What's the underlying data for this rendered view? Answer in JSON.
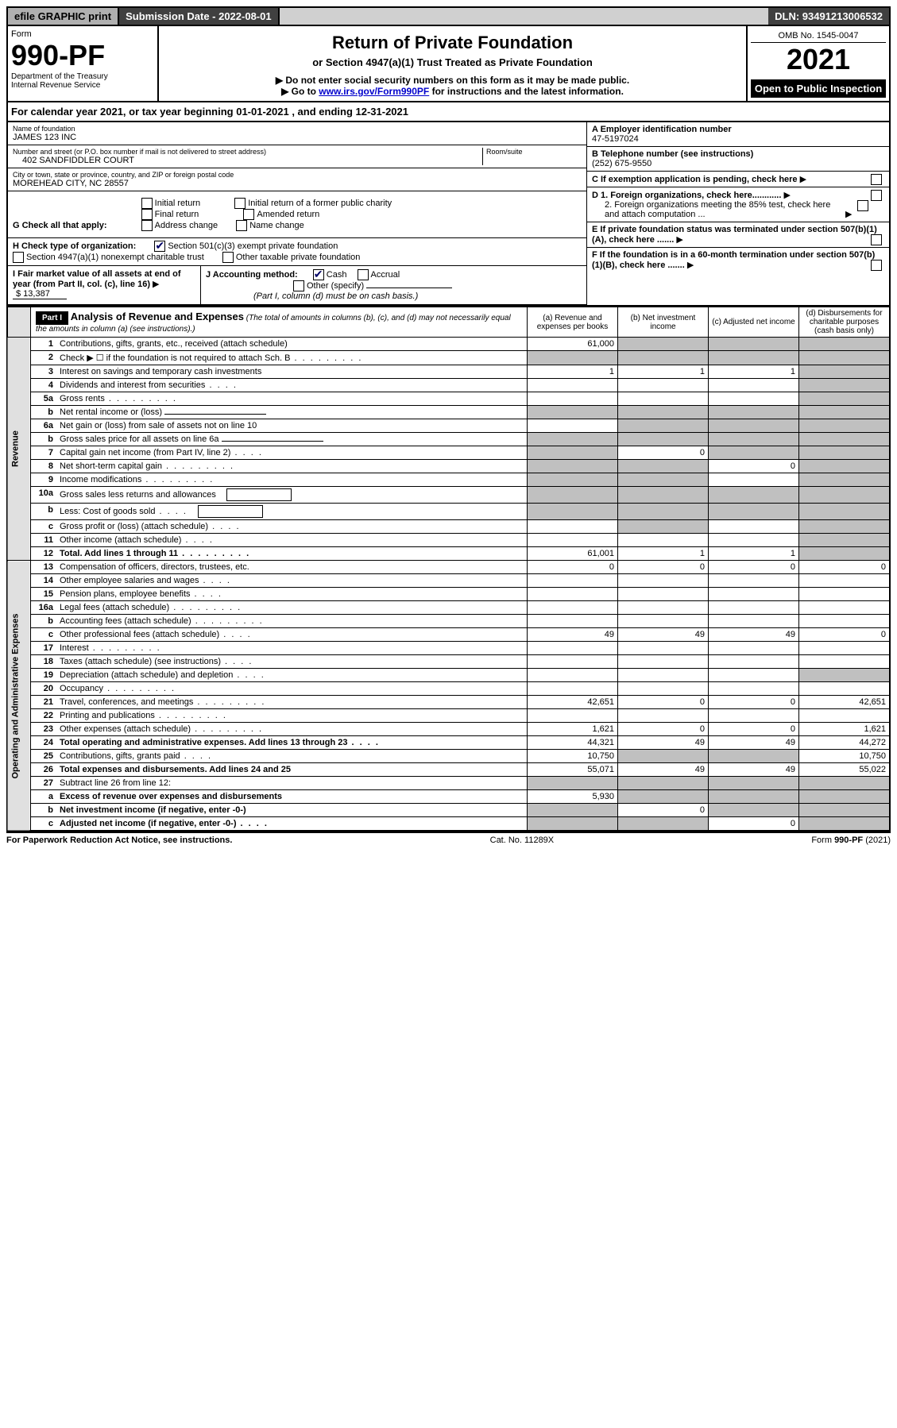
{
  "topbar": {
    "efile": "efile GRAPHIC print",
    "sub_date": "Submission Date - 2022-08-01",
    "dln": "DLN: 93491213006532"
  },
  "header": {
    "form_label": "Form",
    "form_number": "990-PF",
    "dept": "Department of the Treasury",
    "irs": "Internal Revenue Service",
    "title": "Return of Private Foundation",
    "subtitle": "or Section 4947(a)(1) Trust Treated as Private Foundation",
    "note1": "▶ Do not enter social security numbers on this form as it may be made public.",
    "note2_pre": "▶ Go to ",
    "note2_link": "www.irs.gov/Form990PF",
    "note2_post": " for instructions and the latest information.",
    "omb": "OMB No. 1545-0047",
    "year": "2021",
    "open": "Open to Public Inspection"
  },
  "calyear": "For calendar year 2021, or tax year beginning 01-01-2021         , and ending 12-31-2021",
  "name_label": "Name of foundation",
  "name": "JAMES 123 INC",
  "addr_label": "Number and street (or P.O. box number if mail is not delivered to street address)",
  "addr": "402 SANDFIDDLER COURT",
  "room_label": "Room/suite",
  "city_label": "City or town, state or province, country, and ZIP or foreign postal code",
  "city": "MOREHEAD CITY, NC  28557",
  "a_label": "A Employer identification number",
  "a_val": "47-5197024",
  "b_label": "B Telephone number (see instructions)",
  "b_val": "(252) 675-9550",
  "c_label": "C If exemption application is pending, check here",
  "d1": "D 1. Foreign organizations, check here............",
  "d2": "2. Foreign organizations meeting the 85% test, check here and attach computation ...",
  "e_label": "E  If private foundation status was terminated under section 507(b)(1)(A), check here .......",
  "f_label": "F  If the foundation is in a 60-month termination under section 507(b)(1)(B), check here .......",
  "g_label": "G Check all that apply:",
  "g_opts": [
    "Initial return",
    "Final return",
    "Address change",
    "Initial return of a former public charity",
    "Amended return",
    "Name change"
  ],
  "h_label": "H Check type of organization:",
  "h1": "Section 501(c)(3) exempt private foundation",
  "h2": "Section 4947(a)(1) nonexempt charitable trust",
  "h3": "Other taxable private foundation",
  "i_label": "I Fair market value of all assets at end of year (from Part II, col. (c), line 16)",
  "i_val": "$ 13,387",
  "j_label": "J Accounting method:",
  "j_cash": "Cash",
  "j_acc": "Accrual",
  "j_other": "Other (specify)",
  "j_note": "(Part I, column (d) must be on cash basis.)",
  "part1": {
    "tag": "Part I",
    "title": "Analysis of Revenue and Expenses",
    "subtitle": "(The total of amounts in columns (b), (c), and (d) may not necessarily equal the amounts in column (a) (see instructions).)",
    "cols": {
      "a": "(a)   Revenue and expenses per books",
      "b": "(b)   Net investment income",
      "c": "(c)   Adjusted net income",
      "d": "(d)   Disbursements for charitable purposes (cash basis only)"
    }
  },
  "vlabels": {
    "rev": "Revenue",
    "exp": "Operating and Administrative Expenses"
  },
  "rows": [
    {
      "n": "1",
      "d": "Contributions, gifts, grants, etc., received (attach schedule)",
      "a": "61,000",
      "bs": true,
      "cs": true,
      "ds": true
    },
    {
      "n": "2",
      "d": "Check ▶ ☐ if the foundation is not required to attach Sch. B",
      "dots": true,
      "as": true,
      "bs": true,
      "cs": true,
      "ds": true
    },
    {
      "n": "3",
      "d": "Interest on savings and temporary cash investments",
      "a": "1",
      "b": "1",
      "c": "1",
      "ds": true
    },
    {
      "n": "4",
      "d": "Dividends and interest from securities",
      "dots": "s",
      "ds": true
    },
    {
      "n": "5a",
      "d": "Gross rents",
      "dots": true,
      "ds": true
    },
    {
      "n": "b",
      "d": "Net rental income or (loss)",
      "uline": true,
      "as": true,
      "bs": true,
      "cs": true,
      "ds": true
    },
    {
      "n": "6a",
      "d": "Net gain or (loss) from sale of assets not on line 10",
      "bs": true,
      "cs": true,
      "ds": true
    },
    {
      "n": "b",
      "d": "Gross sales price for all assets on line 6a",
      "uline": true,
      "as": true,
      "bs": true,
      "cs": true,
      "ds": true
    },
    {
      "n": "7",
      "d": "Capital gain net income (from Part IV, line 2)",
      "dots": "s",
      "as": true,
      "b": "0",
      "cs": true,
      "ds": true
    },
    {
      "n": "8",
      "d": "Net short-term capital gain",
      "dots": true,
      "as": true,
      "bs": true,
      "c": "0",
      "ds": true
    },
    {
      "n": "9",
      "d": "Income modifications",
      "dots": true,
      "as": true,
      "bs": true,
      "ds": true
    },
    {
      "n": "10a",
      "d": "Gross sales less returns and allowances",
      "box": true,
      "as": true,
      "bs": true,
      "cs": true,
      "ds": true
    },
    {
      "n": "b",
      "d": "Less: Cost of goods sold",
      "dots": "s",
      "box": true,
      "as": true,
      "bs": true,
      "cs": true,
      "ds": true
    },
    {
      "n": "c",
      "d": "Gross profit or (loss) (attach schedule)",
      "dots": "s",
      "bs": true,
      "ds": true
    },
    {
      "n": "11",
      "d": "Other income (attach schedule)",
      "dots": "s",
      "ds": true
    },
    {
      "n": "12",
      "d": "Total. Add lines 1 through 11",
      "dots": true,
      "bold": true,
      "a": "61,001",
      "b": "1",
      "c": "1",
      "ds": true
    },
    {
      "n": "13",
      "d": "Compensation of officers, directors, trustees, etc.",
      "a": "0",
      "b": "0",
      "c": "0",
      "dv": "0"
    },
    {
      "n": "14",
      "d": "Other employee salaries and wages",
      "dots": "s"
    },
    {
      "n": "15",
      "d": "Pension plans, employee benefits",
      "dots": "s"
    },
    {
      "n": "16a",
      "d": "Legal fees (attach schedule)",
      "dots": true
    },
    {
      "n": "b",
      "d": "Accounting fees (attach schedule)",
      "dots": true
    },
    {
      "n": "c",
      "d": "Other professional fees (attach schedule)",
      "dots": "s",
      "a": "49",
      "b": "49",
      "c": "49",
      "dv": "0"
    },
    {
      "n": "17",
      "d": "Interest",
      "dots": true
    },
    {
      "n": "18",
      "d": "Taxes (attach schedule) (see instructions)",
      "dots": "s"
    },
    {
      "n": "19",
      "d": "Depreciation (attach schedule) and depletion",
      "dots": "s",
      "ds": true
    },
    {
      "n": "20",
      "d": "Occupancy",
      "dots": true
    },
    {
      "n": "21",
      "d": "Travel, conferences, and meetings",
      "dots": true,
      "a": "42,651",
      "b": "0",
      "c": "0",
      "dv": "42,651"
    },
    {
      "n": "22",
      "d": "Printing and publications",
      "dots": true
    },
    {
      "n": "23",
      "d": "Other expenses (attach schedule)",
      "dots": true,
      "a": "1,621",
      "b": "0",
      "c": "0",
      "dv": "1,621"
    },
    {
      "n": "24",
      "d": "Total operating and administrative expenses. Add lines 13 through 23",
      "dots": "s",
      "bold": true,
      "a": "44,321",
      "b": "49",
      "c": "49",
      "dv": "44,272"
    },
    {
      "n": "25",
      "d": "Contributions, gifts, grants paid",
      "dots": "s",
      "a": "10,750",
      "bs": true,
      "cs": true,
      "dv": "10,750"
    },
    {
      "n": "26",
      "d": "Total expenses and disbursements. Add lines 24 and 25",
      "bold": true,
      "a": "55,071",
      "b": "49",
      "c": "49",
      "dv": "55,022"
    },
    {
      "n": "27",
      "d": "Subtract line 26 from line 12:",
      "as": true,
      "bs": true,
      "cs": true,
      "ds": true
    },
    {
      "n": "a",
      "d": "Excess of revenue over expenses and disbursements",
      "bold": true,
      "a": "5,930",
      "bs": true,
      "cs": true,
      "ds": true
    },
    {
      "n": "b",
      "d": "Net investment income (if negative, enter -0-)",
      "bold": true,
      "as": true,
      "b": "0",
      "cs": true,
      "ds": true
    },
    {
      "n": "c",
      "d": "Adjusted net income (if negative, enter -0-)",
      "dots": "s",
      "bold": true,
      "as": true,
      "bs": true,
      "c": "0",
      "ds": true
    }
  ],
  "footer": {
    "left": "For Paperwork Reduction Act Notice, see instructions.",
    "mid": "Cat. No. 11289X",
    "right": "Form 990-PF (2021)"
  }
}
